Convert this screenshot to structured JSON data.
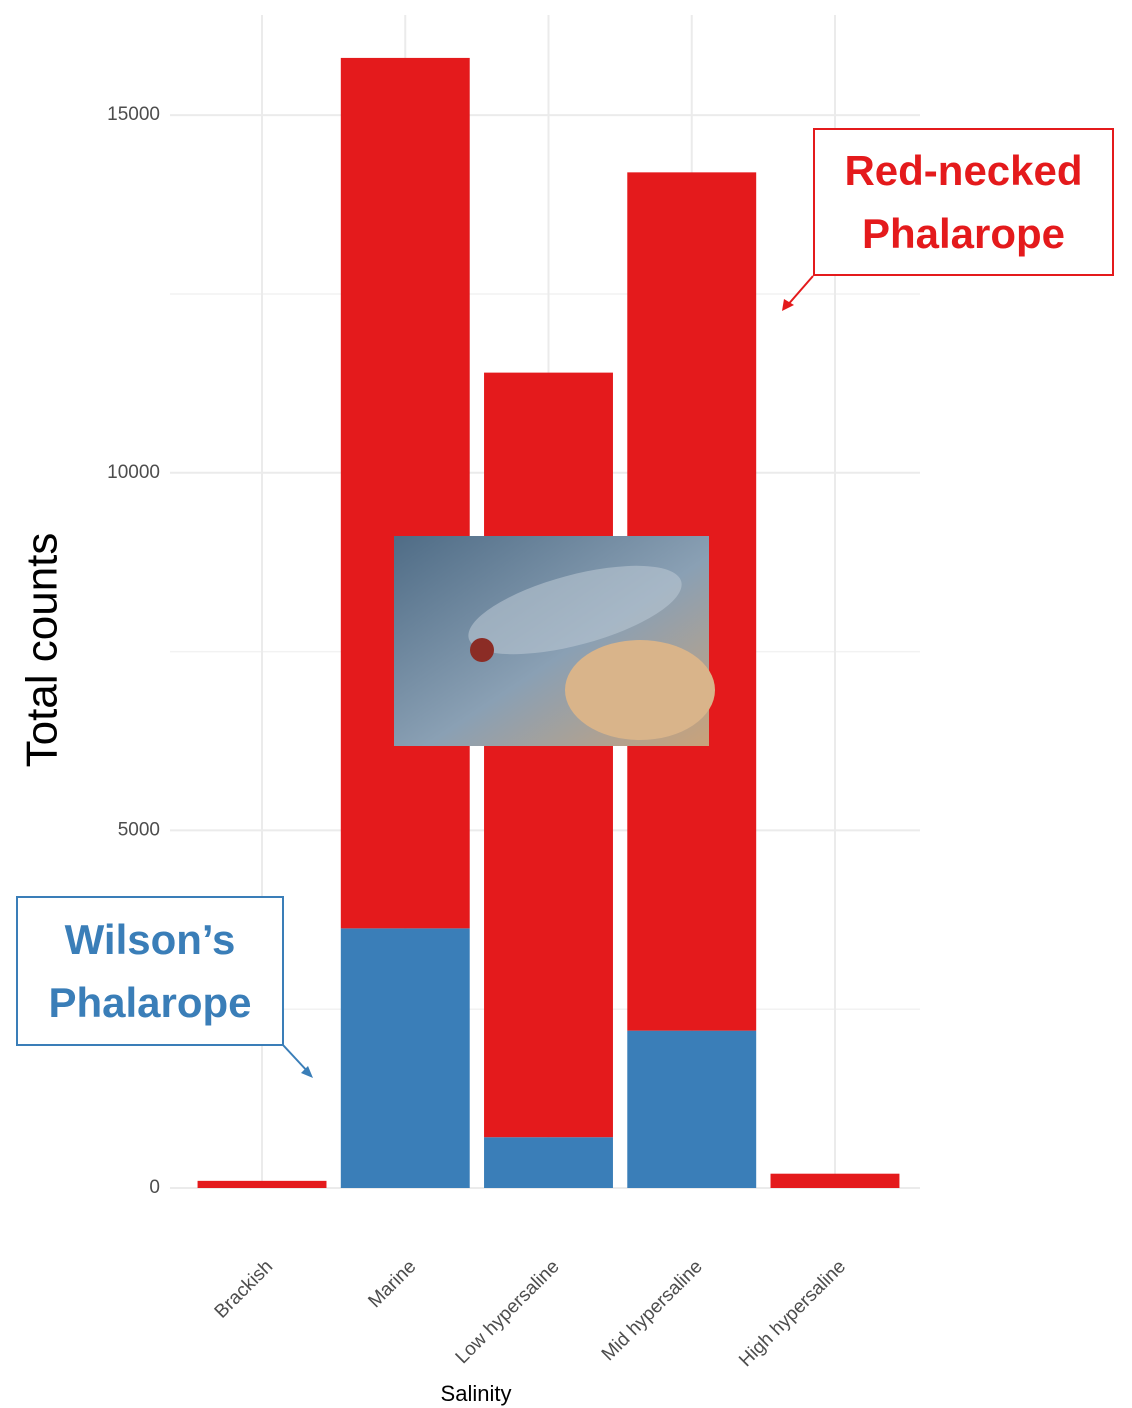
{
  "chart_data": {
    "type": "stacked_bar",
    "x_label": "Salinity",
    "y_label": "Total counts",
    "categories": [
      "Brackish",
      "Marine",
      "Low hypersaline",
      "Mid hypersaline",
      "High hypersaline"
    ],
    "series": [
      {
        "name": "Wilson’s Phalarope",
        "color": "#3a7eb8",
        "values": [
          0,
          3630,
          710,
          2200,
          0
        ]
      },
      {
        "name": "Red-necked Phalarope",
        "color": "#e41a1c",
        "values": [
          100,
          12170,
          10690,
          12000,
          200
        ]
      }
    ],
    "ylim": [
      0,
      16400
    ],
    "yticks": [
      0,
      5000,
      10000,
      15000
    ],
    "grid": true
  }
}
